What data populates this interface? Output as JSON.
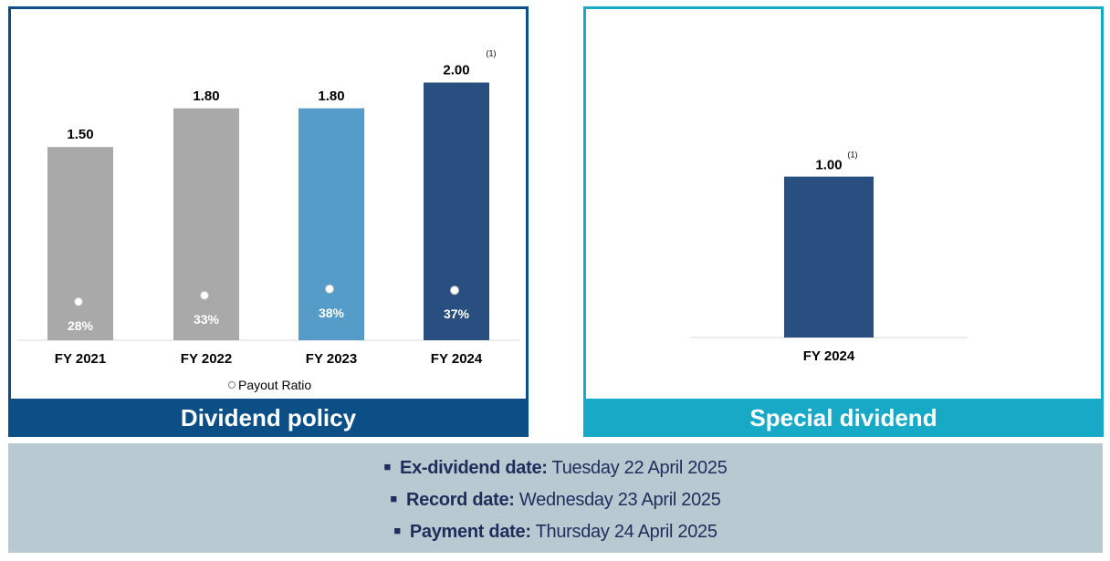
{
  "chart_data": [
    {
      "type": "bar",
      "title": "Dividend policy",
      "categories": [
        "FY 2021",
        "FY 2022",
        "FY 2023",
        "FY 2024"
      ],
      "values": [
        1.5,
        1.8,
        1.8,
        2.0
      ],
      "value_labels": [
        "1.50",
        "1.80",
        "1.80",
        "2.00"
      ],
      "value_footnotes": [
        "",
        "",
        "",
        "(1)"
      ],
      "bar_colors": [
        "#a9a9a9",
        "#a9a9a9",
        "#559dc8",
        "#284f80"
      ],
      "ylim": [
        0,
        2.4
      ],
      "payout_ratio": {
        "legend": "Payout Ratio",
        "values": [
          28,
          33,
          38,
          37
        ],
        "labels": [
          "28%",
          "33%",
          "38%",
          "37%"
        ]
      },
      "legend_position": "bottom",
      "grid": false
    },
    {
      "type": "bar",
      "title": "Special dividend",
      "categories": [
        "FY 2024"
      ],
      "values": [
        1.0
      ],
      "value_labels": [
        "1.00"
      ],
      "value_footnotes": [
        "(1)"
      ],
      "bar_colors": [
        "#284f80"
      ],
      "ylim": [
        0,
        2.4
      ],
      "grid": false
    }
  ],
  "dates": [
    {
      "label": "Ex-dividend date:",
      "value": "Tuesday 22 April 2025"
    },
    {
      "label": "Record date:",
      "value": "Wednesday 23 April 2025"
    },
    {
      "label": "Payment date:",
      "value": "Thursday 24 April 2025"
    }
  ],
  "colors": {
    "dividend_policy": "#0b4f86",
    "special_dividend": "#17a9c6",
    "dates_background": "#b8c9d2",
    "dates_text": "#1f2d5a"
  }
}
